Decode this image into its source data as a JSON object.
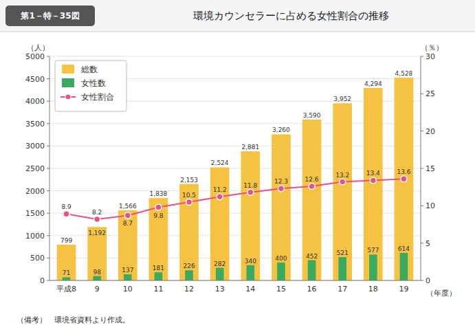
{
  "chart_data": {
    "type": "bar",
    "title": "環境カウンセラーに占める女性割合の推移",
    "header": "第1－特－35図",
    "categories": [
      "平成8",
      "9",
      "10",
      "11",
      "12",
      "13",
      "14",
      "15",
      "16",
      "17",
      "18",
      "19"
    ],
    "xlabel": "（年度）",
    "ylabel": "（人）",
    "y2label": "（％）",
    "note": "（備考）　環境省資料より作成。",
    "series": [
      {
        "name": "総数",
        "type": "bar",
        "color": "#F5C242",
        "values": [
          799,
          1192,
          1566,
          1838,
          2153,
          2524,
          2881,
          3260,
          3590,
          3952,
          4294,
          4528
        ],
        "value_labels": [
          "799",
          "1,192",
          "1,566",
          "1,838",
          "2,153",
          "2,524",
          "2,881",
          "3,260",
          "3,590",
          "3,952",
          "4,294",
          "4,528"
        ]
      },
      {
        "name": "女性数",
        "type": "bar",
        "color": "#3aaa5e",
        "values": [
          71,
          98,
          137,
          181,
          226,
          282,
          340,
          400,
          452,
          521,
          577,
          614
        ]
      },
      {
        "name": "女性割合",
        "type": "line",
        "axis": "y2",
        "color": "#e8508a",
        "marker": "circle",
        "values": [
          8.9,
          8.2,
          8.7,
          9.8,
          10.5,
          11.2,
          11.8,
          12.3,
          12.6,
          13.2,
          13.4,
          13.6
        ]
      }
    ],
    "ylim": [
      0,
      5000
    ],
    "yticks": [
      0,
      500,
      1000,
      1500,
      2000,
      2500,
      3000,
      3500,
      4000,
      4500,
      5000
    ],
    "y2lim": [
      0,
      30
    ],
    "y2ticks": [
      0,
      5,
      10,
      15,
      20,
      25,
      30
    ],
    "grid": true,
    "legend": "upper left",
    "data_labels": true
  }
}
